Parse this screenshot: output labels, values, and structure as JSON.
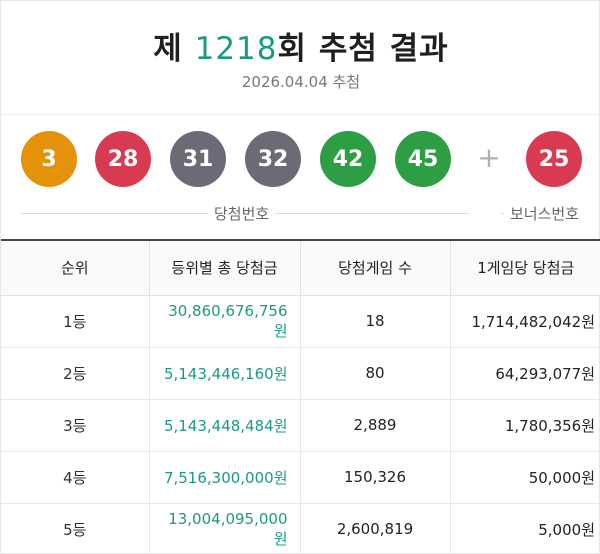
{
  "header": {
    "title_prefix": "제 ",
    "round": "1218",
    "title_suffix": "회 추첨 결과",
    "date": "2026.04.04 추첨"
  },
  "winning_numbers": [
    {
      "number": "3",
      "color": "#e3920a"
    },
    {
      "number": "28",
      "color": "#d83a52"
    },
    {
      "number": "31",
      "color": "#6b6b78"
    },
    {
      "number": "32",
      "color": "#6b6b78"
    },
    {
      "number": "42",
      "color": "#2e9e45"
    },
    {
      "number": "45",
      "color": "#2e9e45"
    }
  ],
  "plus_symbol": "+",
  "bonus_number": {
    "number": "25",
    "color": "#d83a52"
  },
  "captions": {
    "winning": "당첨번호",
    "bonus": "보너스번호"
  },
  "table": {
    "headers": [
      "순위",
      "등위별 총 당첨금",
      "당첨게임 수",
      "1게임당 당첨금"
    ],
    "rows": [
      {
        "rank": "1등",
        "total": "30,860,676,756원",
        "count": "18",
        "per_game": "1,714,482,042원"
      },
      {
        "rank": "2등",
        "total": "5,143,446,160원",
        "count": "80",
        "per_game": "64,293,077원"
      },
      {
        "rank": "3등",
        "total": "5,143,448,484원",
        "count": "2,889",
        "per_game": "1,780,356원"
      },
      {
        "rank": "4등",
        "total": "7,516,300,000원",
        "count": "150,326",
        "per_game": "50,000원"
      },
      {
        "rank": "5등",
        "total": "13,004,095,000원",
        "count": "2,600,819",
        "per_game": "5,000원"
      }
    ]
  }
}
